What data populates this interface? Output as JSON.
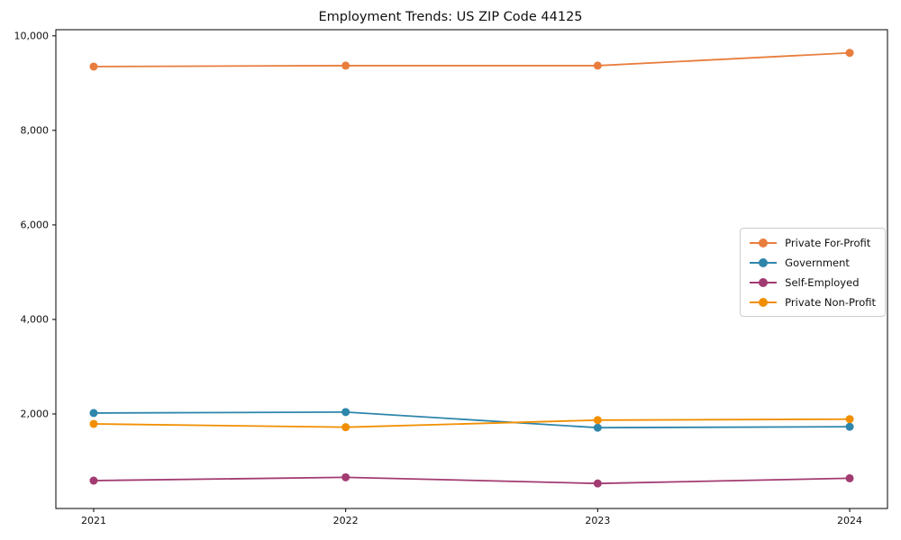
{
  "title": "Employment Trends: US ZIP Code 44125",
  "chart_data": {
    "type": "line",
    "title": "Employment Trends: US ZIP Code 44125",
    "xlabel": "",
    "ylabel": "",
    "categories": [
      "2021",
      "2022",
      "2023",
      "2024"
    ],
    "x": [
      2021,
      2022,
      2023,
      2024
    ],
    "series": [
      {
        "name": "Private For-Profit",
        "color": "#E87D3C",
        "values": [
          9350,
          9370,
          9370,
          9640
        ]
      },
      {
        "name": "Government",
        "color": "#2E86AB",
        "values": [
          2020,
          2040,
          1710,
          1730
        ]
      },
      {
        "name": "Self-Employed",
        "color": "#A23B72",
        "values": [
          590,
          660,
          530,
          640
        ]
      },
      {
        "name": "Private Non-Profit",
        "color": "#F18F01",
        "values": [
          1790,
          1720,
          1870,
          1890
        ]
      }
    ],
    "ylim": [
      0,
      10130
    ],
    "xlim": [
      2020.85,
      2024.15
    ],
    "yticks": [
      2000,
      4000,
      6000,
      8000,
      10000
    ],
    "ytick_labels": [
      "2,000",
      "4,000",
      "6,000",
      "8,000",
      "10,000"
    ],
    "grid": false,
    "legend_position": "center-right",
    "marker": "circle",
    "axis_color": "#000000",
    "tick_label_color": "#111111"
  }
}
